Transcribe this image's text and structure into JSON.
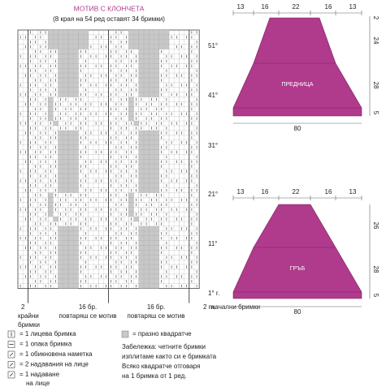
{
  "chart": {
    "title": "МОТИВ С КЛОНЧЕТА",
    "subtitle": "(8 края на 54 ред оставят 34 бримки)",
    "row_labels": [
      "51°",
      "41°",
      "31°",
      "21°",
      "11°",
      "1° r."
    ],
    "bottom_labels": [
      [
        "2",
        "крайни",
        "бримки"
      ],
      [
        "16 бр.",
        "повтаряш се мотив"
      ],
      [
        "16 бр.",
        "повтаряш се мотив"
      ],
      [
        "2 m.",
        "начални бримки"
      ]
    ]
  },
  "legend": {
    "items": [
      [
        "= 1 лицева бримка"
      ],
      [
        "= 1 опака бримка"
      ],
      [
        "= 1 обикновена наметка"
      ],
      [
        "= 2 надавания на лице"
      ],
      [
        "= 1 надаване",
        "на лице"
      ]
    ],
    "empty": "= празно квадратче",
    "note": [
      "Забележка: четните бримки",
      "изплитаме както си е бримката",
      "Всяко квадратче отговаря",
      "на 1 бримка от 1 ред."
    ]
  },
  "schematics": [
    {
      "label": "ПРЕДНИЦА",
      "top": [
        13,
        16,
        22,
        16,
        13
      ],
      "side": [
        2,
        24,
        28,
        5
      ],
      "bottom": 80
    },
    {
      "label": "ГРЪБ",
      "top": [
        13,
        16,
        22,
        16,
        13
      ],
      "side": [
        26,
        28,
        5
      ],
      "bottom": 80
    }
  ]
}
